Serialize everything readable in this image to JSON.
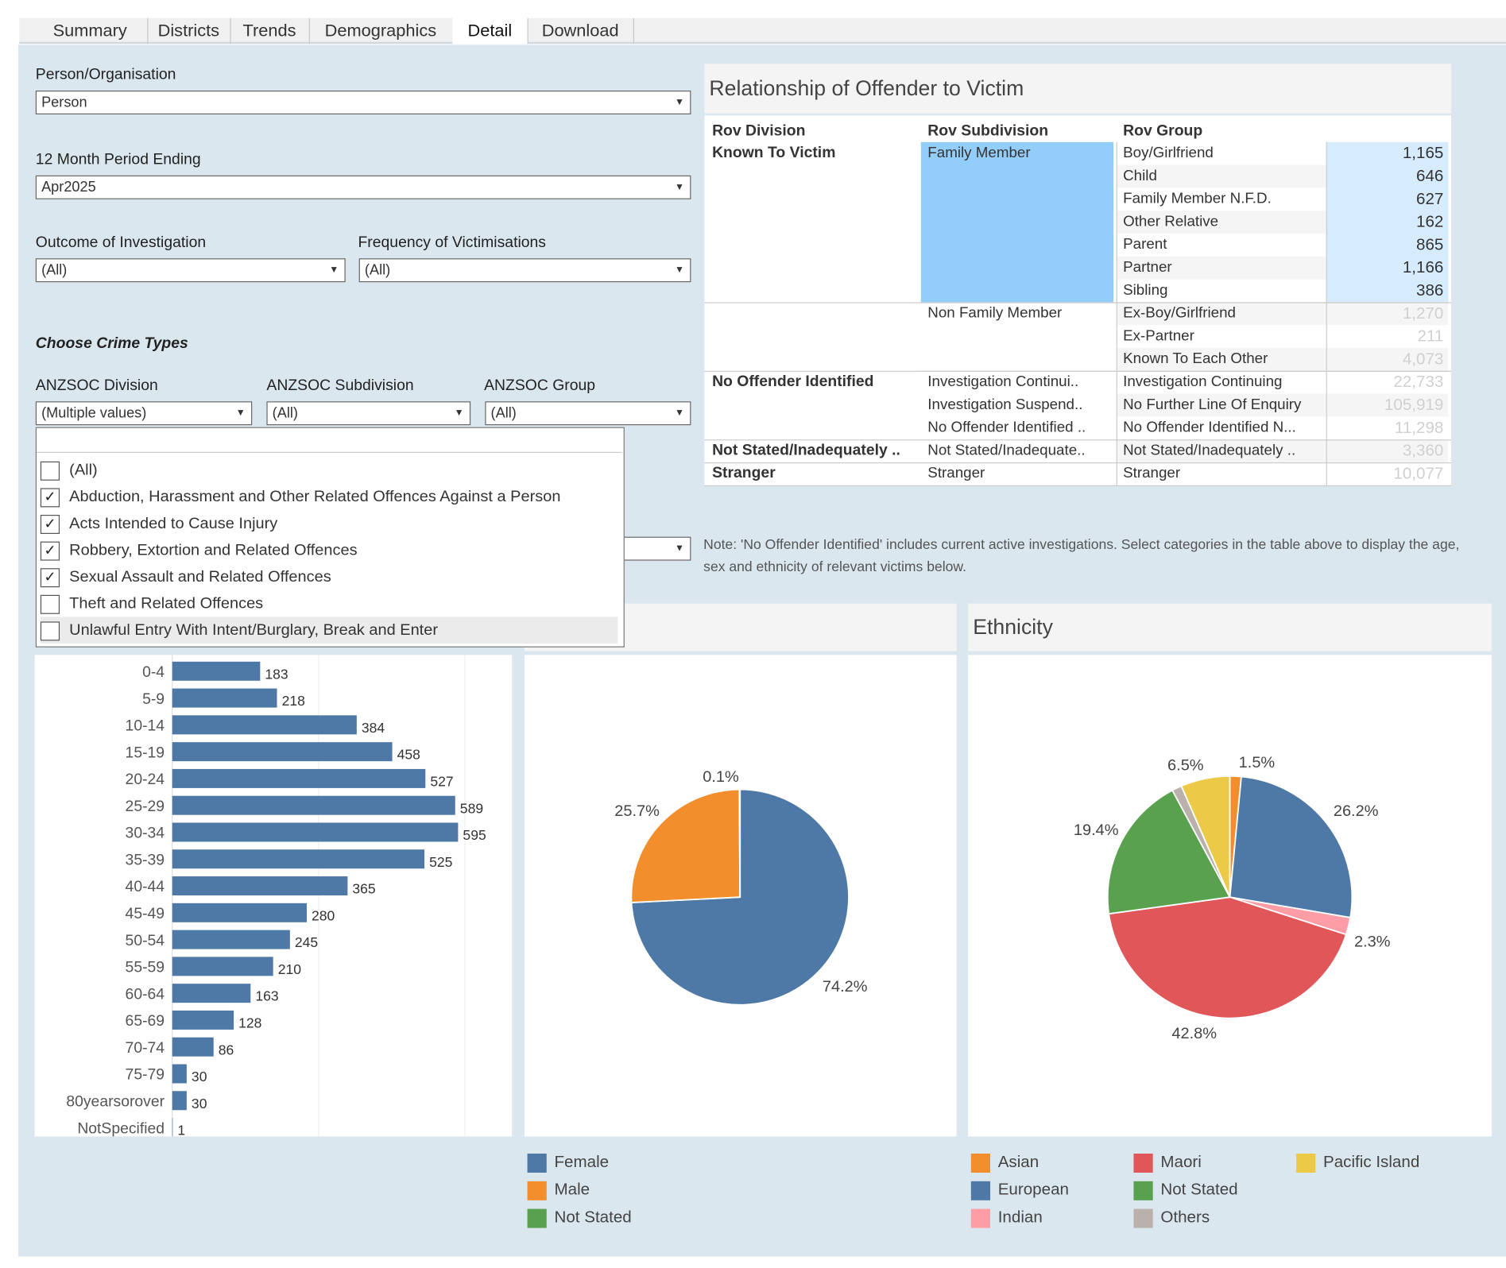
{
  "tabs": [
    {
      "label": "Summary"
    },
    {
      "label": "Districts"
    },
    {
      "label": "Trends"
    },
    {
      "label": "Demographics"
    },
    {
      "label": "Detail"
    },
    {
      "label": "Download"
    }
  ],
  "filters": {
    "person_org": {
      "label": "Person/Organisation",
      "value": "Person"
    },
    "period": {
      "label": "12 Month Period Ending",
      "value": "Apr2025"
    },
    "outcome": {
      "label": "Outcome of Investigation",
      "value": "(All)"
    },
    "frequency": {
      "label": "Frequency of Victimisations",
      "value": "(All)"
    },
    "crime_types_heading": "Choose Crime Types",
    "anzsoc_division": {
      "label": "ANZSOC Division",
      "value": "(Multiple values)"
    },
    "anzsoc_subdivision": {
      "label": "ANZSOC Subdivision",
      "value": "(All)"
    },
    "anzsoc_group": {
      "label": "ANZSOC Group",
      "value": "(All)"
    },
    "division_options": [
      {
        "label": "(All)",
        "checked": false
      },
      {
        "label": "Abduction, Harassment and Other Related Offences Against a Person",
        "checked": true
      },
      {
        "label": "Acts Intended to Cause Injury",
        "checked": true
      },
      {
        "label": "Robbery, Extortion and Related Offences",
        "checked": true
      },
      {
        "label": "Sexual Assault and Related Offences",
        "checked": true
      },
      {
        "label": "Theft and Related Offences",
        "checked": false
      },
      {
        "label": "Unlawful Entry With Intent/Burglary, Break and Enter",
        "checked": false
      }
    ],
    "check_mark": "✓"
  },
  "rov": {
    "title": "Relationship of Offender to Victim",
    "headers": [
      "Rov Division",
      "Rov Subdivision",
      "Rov Group"
    ],
    "divisions": [
      "Known To Victim",
      "No Offender Identified",
      "Not Stated/Inadequately ..",
      "Stranger"
    ],
    "subdivisions": [
      "Family Member",
      "Non Family Member",
      "Investigation Continui..",
      "Investigation Suspend..",
      "No Offender Identified ..",
      "Not Stated/Inadequate..",
      "Stranger"
    ],
    "rows": [
      {
        "group": "Boy/Girlfriend",
        "value": "1,165"
      },
      {
        "group": "Child",
        "value": "646"
      },
      {
        "group": "Family Member N.F.D.",
        "value": "627"
      },
      {
        "group": "Other Relative",
        "value": "162"
      },
      {
        "group": "Parent",
        "value": "865"
      },
      {
        "group": "Partner",
        "value": "1,166"
      },
      {
        "group": "Sibling",
        "value": "386"
      },
      {
        "group": "Ex-Boy/Girlfriend",
        "value": "1,270"
      },
      {
        "group": "Ex-Partner",
        "value": "211"
      },
      {
        "group": "Known To Each Other",
        "value": "4,073"
      },
      {
        "group": "Investigation Continuing",
        "value": "22,733"
      },
      {
        "group": "No Further Line Of Enquiry",
        "value": "105,919"
      },
      {
        "group": "No Offender Identified N...",
        "value": "11,298"
      },
      {
        "group": "Not Stated/Inadequately ..",
        "value": "3,360"
      },
      {
        "group": "Stranger",
        "value": "10,077"
      }
    ],
    "note": "Note: 'No Offender Identified' includes current active investigations. Select categories in the  table above to display the age, sex and ethnicity of relevant victims below."
  },
  "age_chart": {
    "chart_data": {
      "type": "bar",
      "categories": [
        "0-4",
        "5-9",
        "10-14",
        "15-19",
        "20-24",
        "25-29",
        "30-34",
        "35-39",
        "40-44",
        "45-49",
        "50-54",
        "55-59",
        "60-64",
        "65-69",
        "70-74",
        "75-79",
        "80yearsorover",
        "NotSpecified"
      ],
      "values": [
        183,
        218,
        384,
        458,
        527,
        589,
        595,
        525,
        365,
        280,
        245,
        210,
        163,
        128,
        86,
        30,
        30,
        1
      ],
      "color": "#4e79a7"
    }
  },
  "sex_chart": {
    "chart_data": {
      "type": "pie",
      "labels": [
        "Female",
        "Male",
        "Not Stated"
      ],
      "values": [
        74.2,
        25.7,
        0.1
      ],
      "display": [
        "74.2%",
        "25.7%",
        "0.1%"
      ],
      "colors": [
        "#4e79a7",
        "#f28e2b",
        "#59a14f"
      ]
    },
    "legend": [
      "Female",
      "Male",
      "Not Stated"
    ]
  },
  "ethnicity_chart": {
    "title": "Ethnicity",
    "chart_data": {
      "type": "pie",
      "labels": [
        "Asian",
        "European",
        "Indian",
        "Maori",
        "Not Stated",
        "Others",
        "Pacific Island"
      ],
      "values": [
        1.5,
        26.2,
        2.3,
        42.8,
        19.4,
        1.3,
        6.5
      ],
      "display": [
        "1.5%",
        "26.2%",
        "2.3%",
        "42.8%",
        "19.4%",
        "",
        "6.5%"
      ],
      "colors": [
        "#f28e2b",
        "#4e79a7",
        "#ff9da7",
        "#e15759",
        "#59a14f",
        "#bab0ac",
        "#edc948"
      ]
    },
    "legend": [
      "Asian",
      "Maori",
      "Pacific Island",
      "European",
      "Not Stated",
      "Indian",
      "Others"
    ]
  }
}
